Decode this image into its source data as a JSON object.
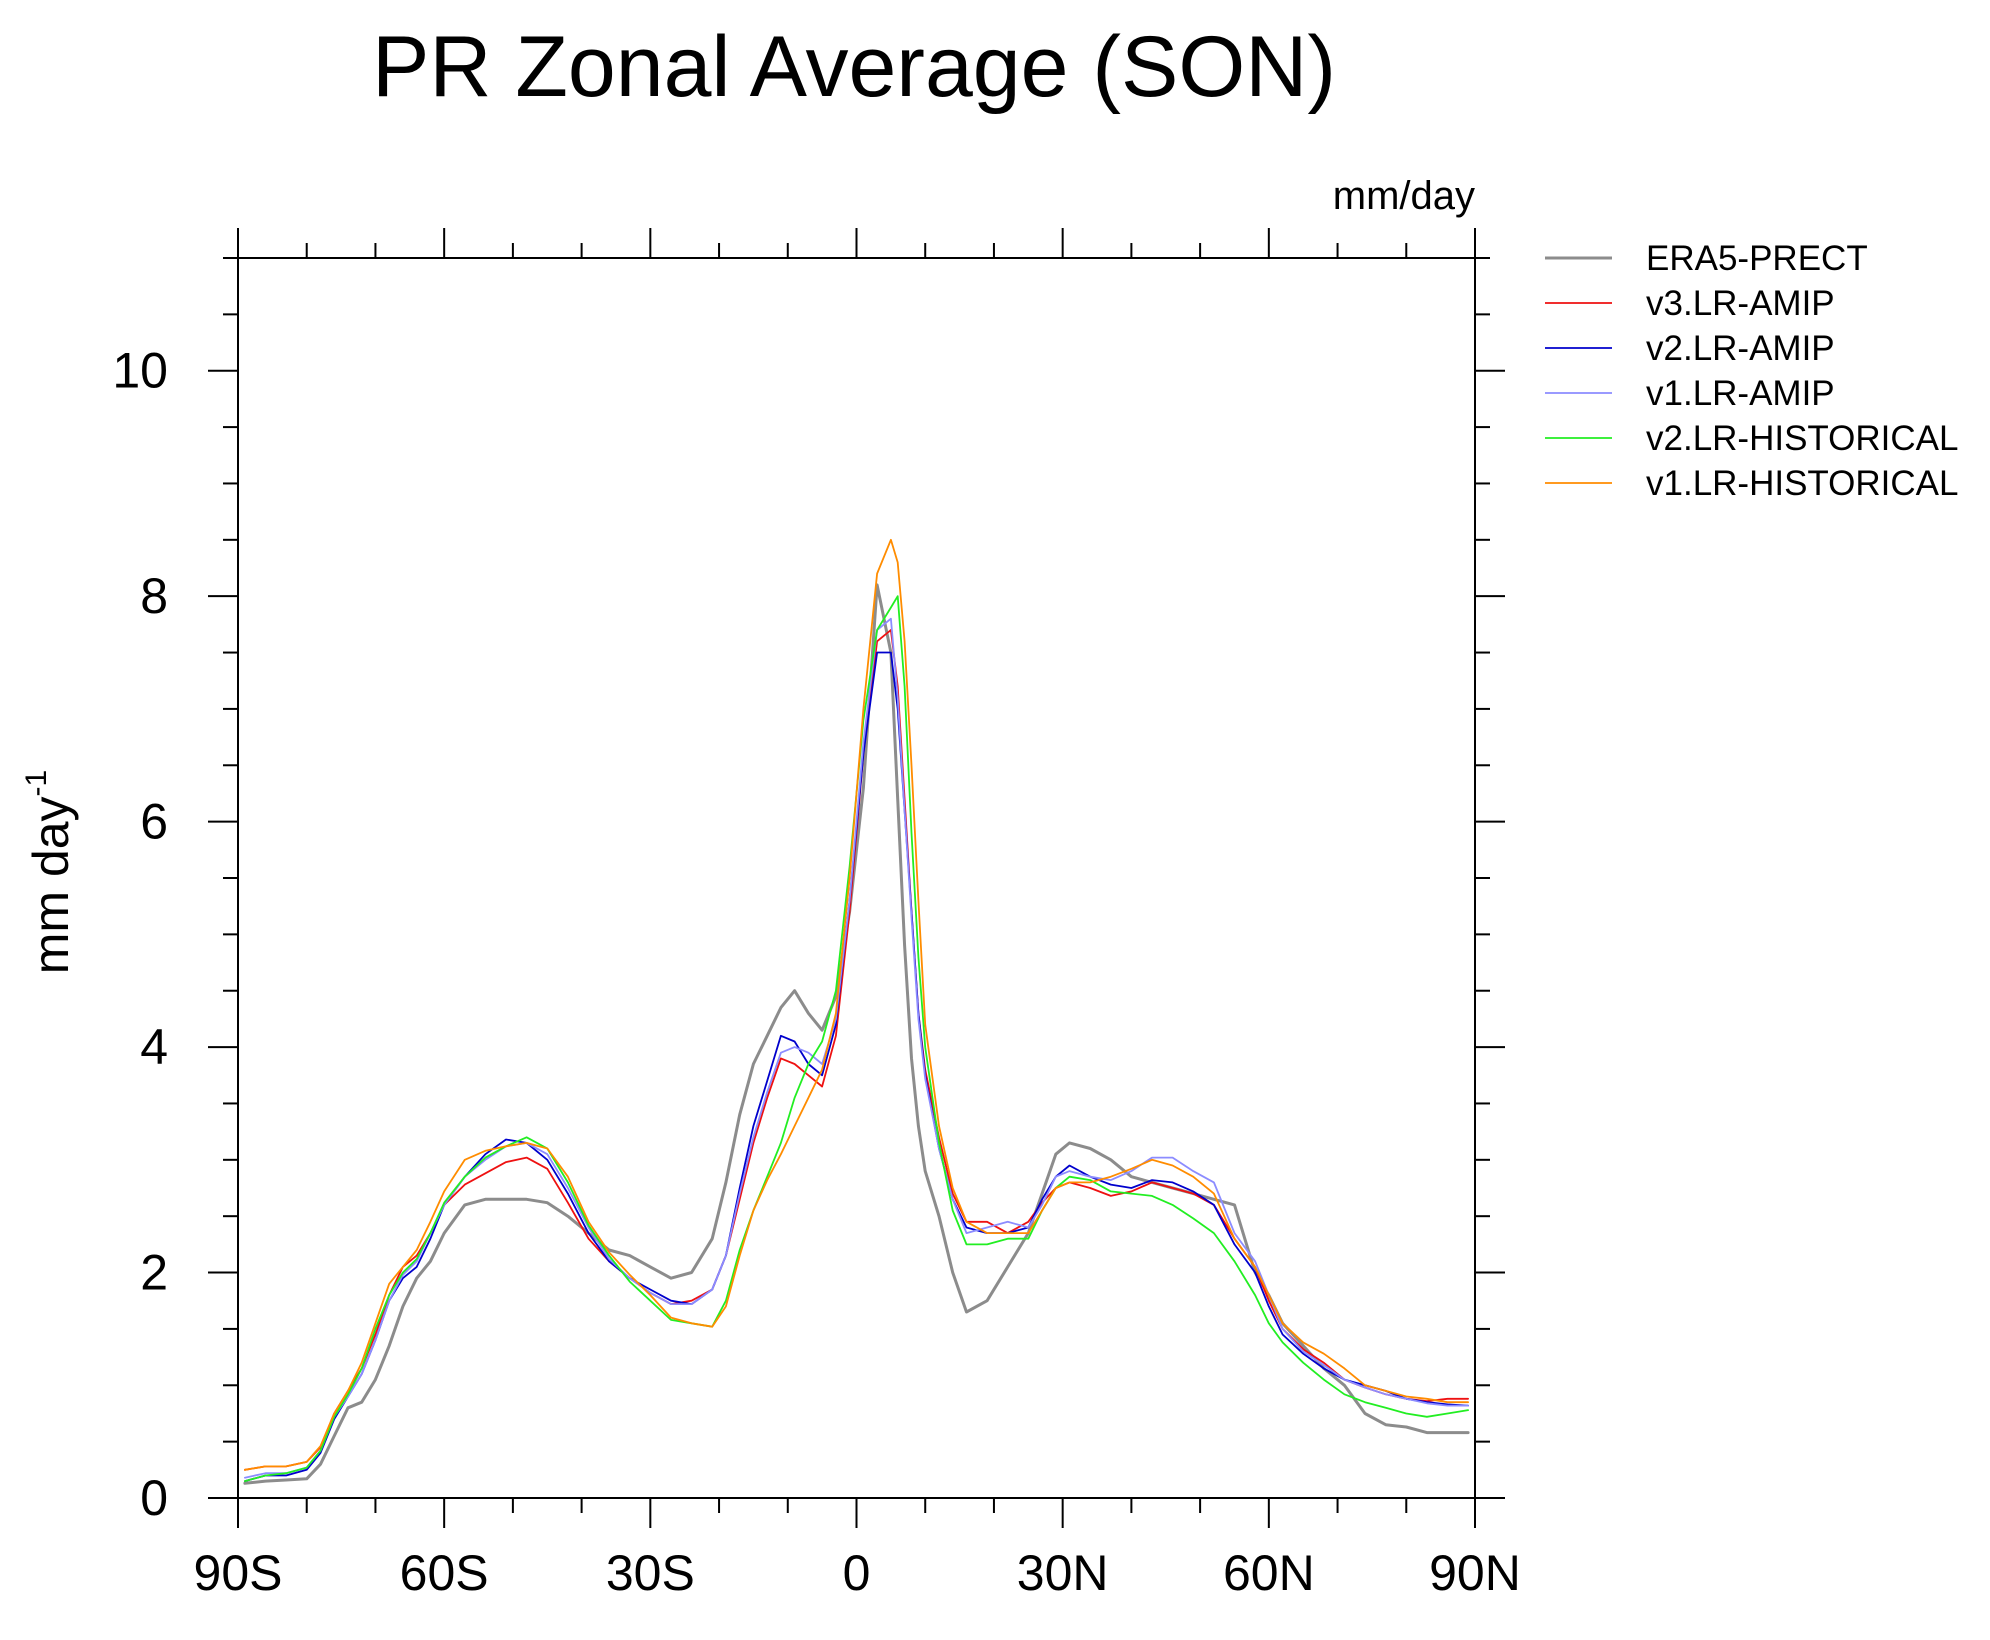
{
  "chart_data": {
    "type": "line",
    "title": "PR Zonal Average (SON)",
    "units_label": "mm/day",
    "ylabel": "mm day",
    "ylabel_sup": "-1",
    "xlabel": "",
    "xlim": [
      -90,
      90
    ],
    "ylim": [
      0,
      11
    ],
    "x_ticks": [
      -90,
      -60,
      -30,
      0,
      30,
      60,
      90
    ],
    "x_tick_labels": [
      "90S",
      "60S",
      "30S",
      "0",
      "30N",
      "60N",
      "90N"
    ],
    "y_ticks": [
      0,
      2,
      4,
      6,
      8,
      10
    ],
    "y_tick_labels": [
      "0",
      "2",
      "4",
      "6",
      "8",
      "10"
    ],
    "legend_position": "right",
    "x": [
      -89,
      -86,
      -83,
      -80,
      -78,
      -76,
      -74,
      -72,
      -70,
      -68,
      -66,
      -64,
      -62,
      -60,
      -57,
      -54,
      -51,
      -48,
      -45,
      -42,
      -39,
      -36,
      -33,
      -30,
      -27,
      -24,
      -21,
      -19,
      -17,
      -15,
      -13,
      -11,
      -9,
      -7,
      -5,
      -3,
      -1,
      1,
      3,
      5,
      6,
      7,
      8,
      9,
      10,
      12,
      14,
      16,
      19,
      22,
      25,
      27,
      29,
      31,
      34,
      37,
      40,
      43,
      46,
      49,
      52,
      55,
      58,
      60,
      62,
      65,
      68,
      71,
      74,
      77,
      80,
      83,
      86,
      89
    ],
    "series": [
      {
        "name": "ERA5-PRECT",
        "color": "#8c8c8c",
        "width": 3,
        "values": [
          0.13,
          0.15,
          0.16,
          0.17,
          0.3,
          0.55,
          0.8,
          0.85,
          1.05,
          1.35,
          1.7,
          1.95,
          2.1,
          2.35,
          2.6,
          2.65,
          2.65,
          2.65,
          2.62,
          2.5,
          2.35,
          2.2,
          2.15,
          2.05,
          1.95,
          2.0,
          2.3,
          2.8,
          3.4,
          3.85,
          4.1,
          4.35,
          4.5,
          4.3,
          4.15,
          4.45,
          5.2,
          6.3,
          8.1,
          7.5,
          6.2,
          4.9,
          3.9,
          3.3,
          2.9,
          2.5,
          2.0,
          1.65,
          1.75,
          2.05,
          2.35,
          2.7,
          3.05,
          3.15,
          3.1,
          3.0,
          2.85,
          2.8,
          2.75,
          2.7,
          2.65,
          2.6,
          2.0,
          1.8,
          1.55,
          1.35,
          1.15,
          1.0,
          0.75,
          0.65,
          0.63,
          0.58,
          0.58,
          0.58
        ]
      },
      {
        "name": "v3.LR-AMIP",
        "color": "#ee1111",
        "width": 1.8,
        "values": [
          0.25,
          0.28,
          0.28,
          0.32,
          0.45,
          0.75,
          0.95,
          1.15,
          1.45,
          1.8,
          2.05,
          2.15,
          2.35,
          2.6,
          2.78,
          2.88,
          2.98,
          3.02,
          2.92,
          2.62,
          2.3,
          2.1,
          1.95,
          1.82,
          1.72,
          1.75,
          1.85,
          2.15,
          2.65,
          3.15,
          3.55,
          3.9,
          3.85,
          3.75,
          3.65,
          4.1,
          5.2,
          6.6,
          7.6,
          7.7,
          7.2,
          6.2,
          5.2,
          4.3,
          3.8,
          3.2,
          2.7,
          2.45,
          2.45,
          2.35,
          2.45,
          2.62,
          2.75,
          2.8,
          2.75,
          2.68,
          2.72,
          2.8,
          2.75,
          2.7,
          2.6,
          2.3,
          2.05,
          1.75,
          1.5,
          1.32,
          1.2,
          1.05,
          0.98,
          0.92,
          0.88,
          0.86,
          0.88,
          0.88
        ]
      },
      {
        "name": "v2.LR-AMIP",
        "color": "#0000cc",
        "width": 1.8,
        "values": [
          0.15,
          0.2,
          0.2,
          0.25,
          0.4,
          0.7,
          0.9,
          1.1,
          1.4,
          1.75,
          1.95,
          2.05,
          2.3,
          2.6,
          2.85,
          3.05,
          3.18,
          3.15,
          3.0,
          2.7,
          2.35,
          2.1,
          1.95,
          1.85,
          1.75,
          1.72,
          1.85,
          2.15,
          2.75,
          3.3,
          3.7,
          4.1,
          4.05,
          3.85,
          3.75,
          4.2,
          5.3,
          6.6,
          7.5,
          7.5,
          7.0,
          6.1,
          5.2,
          4.3,
          3.75,
          3.1,
          2.65,
          2.4,
          2.35,
          2.35,
          2.4,
          2.65,
          2.85,
          2.95,
          2.85,
          2.78,
          2.75,
          2.82,
          2.8,
          2.72,
          2.6,
          2.25,
          2.0,
          1.7,
          1.45,
          1.28,
          1.15,
          1.05,
          1.0,
          0.95,
          0.88,
          0.85,
          0.83,
          0.82
        ]
      },
      {
        "name": "v1.LR-AMIP",
        "color": "#8c8cff",
        "width": 1.8,
        "values": [
          0.18,
          0.22,
          0.22,
          0.27,
          0.42,
          0.72,
          0.9,
          1.1,
          1.4,
          1.75,
          1.98,
          2.1,
          2.35,
          2.6,
          2.85,
          3.0,
          3.12,
          3.15,
          3.05,
          2.75,
          2.4,
          2.12,
          1.95,
          1.82,
          1.72,
          1.72,
          1.85,
          2.15,
          2.7,
          3.2,
          3.6,
          3.95,
          4.0,
          3.95,
          3.85,
          4.25,
          5.3,
          6.7,
          7.7,
          7.8,
          7.1,
          6.1,
          5.15,
          4.25,
          3.72,
          3.1,
          2.65,
          2.35,
          2.4,
          2.45,
          2.4,
          2.6,
          2.85,
          2.9,
          2.85,
          2.82,
          2.9,
          3.02,
          3.02,
          2.9,
          2.8,
          2.35,
          2.1,
          1.8,
          1.5,
          1.3,
          1.18,
          1.05,
          0.98,
          0.92,
          0.88,
          0.84,
          0.82,
          0.82
        ]
      },
      {
        "name": "v2.LR-HISTORICAL",
        "color": "#22ee22",
        "width": 1.8,
        "values": [
          0.15,
          0.2,
          0.22,
          0.27,
          0.42,
          0.72,
          0.92,
          1.15,
          1.5,
          1.8,
          2.0,
          2.12,
          2.35,
          2.62,
          2.85,
          3.02,
          3.12,
          3.2,
          3.1,
          2.8,
          2.42,
          2.15,
          1.92,
          1.75,
          1.58,
          1.55,
          1.52,
          1.75,
          2.2,
          2.55,
          2.85,
          3.15,
          3.55,
          3.85,
          4.05,
          4.5,
          5.6,
          6.9,
          7.7,
          7.9,
          8.0,
          7.2,
          5.9,
          4.8,
          4.0,
          3.15,
          2.55,
          2.25,
          2.25,
          2.3,
          2.3,
          2.55,
          2.75,
          2.85,
          2.82,
          2.72,
          2.7,
          2.68,
          2.6,
          2.48,
          2.35,
          2.1,
          1.8,
          1.55,
          1.38,
          1.2,
          1.05,
          0.92,
          0.85,
          0.8,
          0.75,
          0.72,
          0.75,
          0.78
        ]
      },
      {
        "name": "v1.LR-HISTORICAL",
        "color": "#ff8c00",
        "width": 1.8,
        "values": [
          0.25,
          0.28,
          0.28,
          0.32,
          0.46,
          0.75,
          0.95,
          1.2,
          1.55,
          1.9,
          2.05,
          2.2,
          2.45,
          2.72,
          3.0,
          3.08,
          3.12,
          3.15,
          3.1,
          2.85,
          2.45,
          2.18,
          1.98,
          1.8,
          1.6,
          1.55,
          1.52,
          1.7,
          2.15,
          2.55,
          2.82,
          3.05,
          3.3,
          3.55,
          3.8,
          4.3,
          5.5,
          7.0,
          8.2,
          8.5,
          8.3,
          7.6,
          6.5,
          5.3,
          4.2,
          3.3,
          2.75,
          2.45,
          2.35,
          2.35,
          2.35,
          2.55,
          2.75,
          2.8,
          2.8,
          2.85,
          2.92,
          3.0,
          2.95,
          2.85,
          2.7,
          2.3,
          2.05,
          1.8,
          1.55,
          1.38,
          1.28,
          1.15,
          1.0,
          0.95,
          0.9,
          0.88,
          0.85,
          0.85
        ]
      }
    ]
  }
}
